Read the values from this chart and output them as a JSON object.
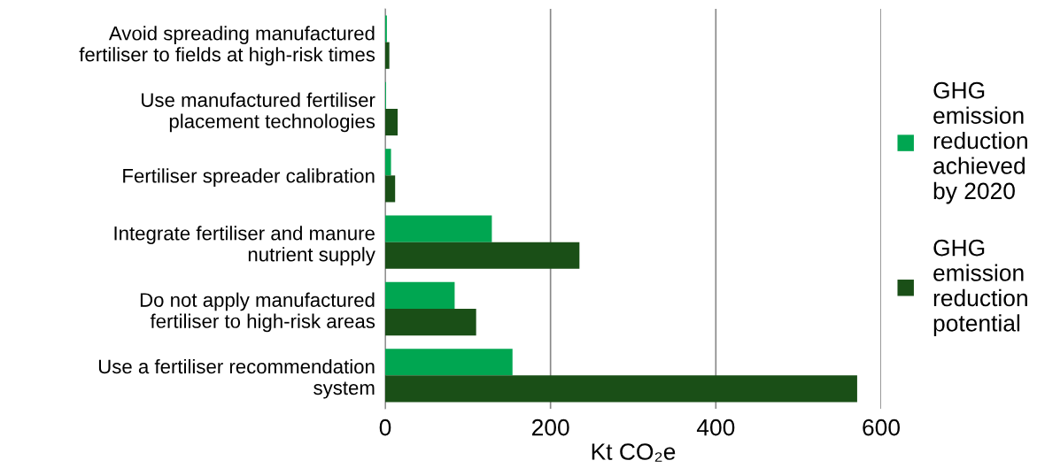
{
  "chart_data": {
    "type": "bar",
    "orientation": "horizontal",
    "categories": [
      "Avoid spreading manufactured\nfertiliser to fields at high-risk times",
      "Use manufactured fertiliser\nplacement technologies",
      "Fertiliser spreader calibration",
      "Integrate fertiliser and manure\nnutrient supply",
      "Do not apply manufactured\nfertiliser to high-risk areas",
      "Use a fertiliser recommendation\nsystem"
    ],
    "series": [
      {
        "name": "GHG\nemission\nreduction\nachieved\nby 2020",
        "color": "#00a651",
        "values": [
          2,
          1,
          7,
          129,
          84,
          154
        ]
      },
      {
        "name": "GHG\nemission\nreduction\npotential",
        "color": "#1a4f17",
        "values": [
          5,
          15,
          12,
          235,
          110,
          571
        ]
      }
    ],
    "xlim": [
      0,
      600
    ],
    "xticks": [
      0,
      200,
      400,
      600
    ],
    "xlabel": "Kt CO₂e",
    "grid": "x",
    "legend": "right"
  }
}
